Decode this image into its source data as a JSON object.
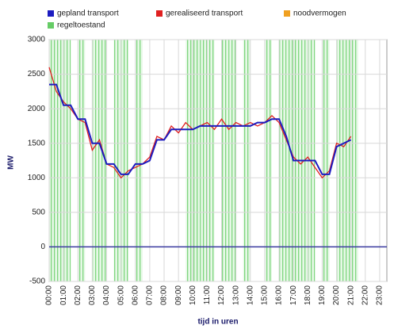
{
  "chart_data": {
    "type": "line",
    "y_label": "MW",
    "x_label": "tijd in uren",
    "x": [
      0,
      0.5,
      1,
      1.5,
      2,
      2.5,
      3,
      3.5,
      4,
      4.5,
      5,
      5.5,
      6,
      6.5,
      7,
      7.5,
      8,
      8.5,
      9,
      9.5,
      10,
      10.5,
      11,
      11.5,
      12,
      12.5,
      13,
      13.5,
      14,
      14.5,
      15,
      15.5,
      16,
      16.5,
      17,
      17.5,
      18,
      18.5,
      19,
      19.5,
      20,
      20.5,
      21
    ],
    "xlim": [
      0,
      23.5
    ],
    "xticks": [
      {
        "value": 0,
        "label": "00:00"
      },
      {
        "value": 1,
        "label": "01:00"
      },
      {
        "value": 2,
        "label": "02:00"
      },
      {
        "value": 3,
        "label": "03:00"
      },
      {
        "value": 4,
        "label": "04:00"
      },
      {
        "value": 5,
        "label": "05:00"
      },
      {
        "value": 6,
        "label": "06:00"
      },
      {
        "value": 7,
        "label": "07:00"
      },
      {
        "value": 8,
        "label": "08:00"
      },
      {
        "value": 9,
        "label": "09:00"
      },
      {
        "value": 10,
        "label": "10:00"
      },
      {
        "value": 11,
        "label": "11:00"
      },
      {
        "value": 12,
        "label": "12:00"
      },
      {
        "value": 13,
        "label": "13:00"
      },
      {
        "value": 14,
        "label": "14:00"
      },
      {
        "value": 15,
        "label": "15:00"
      },
      {
        "value": 16,
        "label": "16:00"
      },
      {
        "value": 17,
        "label": "17:00"
      },
      {
        "value": 18,
        "label": "18:00"
      },
      {
        "value": 19,
        "label": "19:00"
      },
      {
        "value": 20,
        "label": "20:00"
      },
      {
        "value": 21,
        "label": "21:00"
      },
      {
        "value": 22,
        "label": "22:00"
      },
      {
        "value": 23,
        "label": "23:00"
      }
    ],
    "ylim": [
      -500,
      3000
    ],
    "yticks": [
      -500,
      0,
      500,
      1000,
      1500,
      2000,
      2500,
      3000
    ],
    "grid": true,
    "series": [
      {
        "name": "gepland transport",
        "color": "#1c1cc0",
        "mark": "step",
        "values": [
          2350,
          2350,
          2050,
          2050,
          1850,
          1850,
          1500,
          1500,
          1200,
          1200,
          1050,
          1050,
          1200,
          1200,
          1250,
          1550,
          1550,
          1700,
          1700,
          1700,
          1700,
          1750,
          1750,
          1750,
          1750,
          1750,
          1750,
          1750,
          1750,
          1800,
          1800,
          1850,
          1850,
          1600,
          1250,
          1250,
          1250,
          1250,
          1050,
          1050,
          1450,
          1500,
          1550
        ]
      },
      {
        "name": "gerealiseerd transport",
        "color": "#e02020",
        "mark": "line",
        "values": [
          2600,
          2250,
          2100,
          2000,
          1850,
          1800,
          1400,
          1550,
          1200,
          1150,
          1000,
          1100,
          1150,
          1200,
          1300,
          1600,
          1550,
          1750,
          1650,
          1800,
          1700,
          1750,
          1800,
          1700,
          1850,
          1700,
          1800,
          1750,
          1800,
          1750,
          1800,
          1900,
          1800,
          1550,
          1300,
          1200,
          1300,
          1150,
          1000,
          1100,
          1500,
          1450,
          1600
        ]
      },
      {
        "name": "noodvermogen",
        "color": "#f0a020",
        "mark": "line",
        "values": [
          null,
          null,
          null,
          null,
          null,
          null,
          null,
          null,
          null,
          null,
          null,
          null,
          null,
          null,
          null,
          null,
          null,
          null,
          null,
          null,
          null,
          null,
          null,
          null,
          null,
          null,
          null,
          null,
          null,
          null,
          null,
          null,
          null,
          null,
          null,
          null,
          null,
          null,
          null,
          null,
          null,
          null,
          null
        ]
      },
      {
        "name": "regeltoestand",
        "color": "#66cc66",
        "mark": "band",
        "values": [
          3000,
          3000,
          3000,
          null,
          3000,
          null,
          3000,
          3000,
          null,
          3000,
          3000,
          null,
          3000,
          null,
          null,
          null,
          null,
          null,
          null,
          3000,
          3000,
          3000,
          3000,
          null,
          3000,
          3000,
          null,
          3000,
          null,
          null,
          3000,
          null,
          3000,
          3000,
          3000,
          3000,
          3000,
          null,
          3000,
          null,
          3000,
          3000,
          3000
        ]
      }
    ]
  }
}
